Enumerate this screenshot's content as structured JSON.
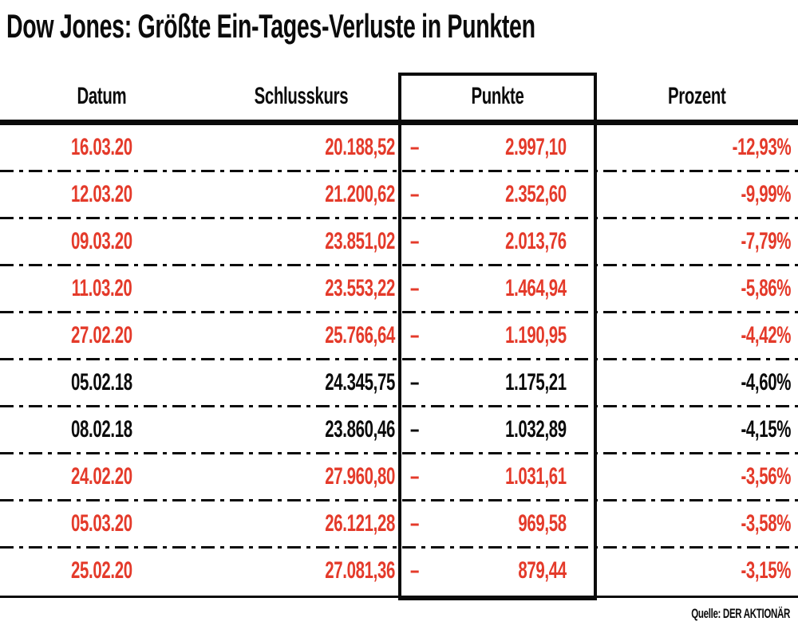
{
  "title": "Dow Jones: Größte Ein-Tages-Verluste in Punkten",
  "source": "Quelle: DER AKTIONÄR",
  "colors": {
    "row_highlight_red": "#E43A2A",
    "ink": "#0B0B0B"
  },
  "chart_data": {
    "type": "table",
    "title": "Dow Jones: Größte Ein-Tages-Verluste in Punkten",
    "columns": [
      "Datum",
      "Schlusskurs",
      "Punkte",
      "Prozent"
    ],
    "minus_sign": "–",
    "rows": [
      {
        "datum": "16.03.20",
        "schlusskurs": "20.188,52",
        "punkte": "2.997,10",
        "prozent": "-12,93%",
        "highlight": true
      },
      {
        "datum": "12.03.20",
        "schlusskurs": "21.200,62",
        "punkte": "2.352,60",
        "prozent": "-9,99%",
        "highlight": true
      },
      {
        "datum": "09.03.20",
        "schlusskurs": "23.851,02",
        "punkte": "2.013,76",
        "prozent": "-7,79%",
        "highlight": true
      },
      {
        "datum": "11.03.20",
        "schlusskurs": "23.553,22",
        "punkte": "1.464,94",
        "prozent": "-5,86%",
        "highlight": true
      },
      {
        "datum": "27.02.20",
        "schlusskurs": "25.766,64",
        "punkte": "1.190,95",
        "prozent": "-4,42%",
        "highlight": true
      },
      {
        "datum": "05.02.18",
        "schlusskurs": "24.345,75",
        "punkte": "1.175,21",
        "prozent": "-4,60%",
        "highlight": false
      },
      {
        "datum": "08.02.18",
        "schlusskurs": "23.860,46",
        "punkte": "1.032,89",
        "prozent": "-4,15%",
        "highlight": false
      },
      {
        "datum": "24.02.20",
        "schlusskurs": "27.960,80",
        "punkte": "1.031,61",
        "prozent": "-3,56%",
        "highlight": true
      },
      {
        "datum": "05.03.20",
        "schlusskurs": "26.121,28",
        "punkte": "969,58",
        "prozent": "-3,58%",
        "highlight": true
      },
      {
        "datum": "25.02.20",
        "schlusskurs": "27.081,36",
        "punkte": "879,44",
        "prozent": "-3,15%",
        "highlight": true
      }
    ],
    "source": "Quelle: DER AKTIONÄR",
    "layout_hints": {
      "boxed_column": "Punkte",
      "row_separator_style": "dash-dot",
      "highlight_meaning": "red rows = 2020 dates, black rows = 2018 dates"
    }
  }
}
